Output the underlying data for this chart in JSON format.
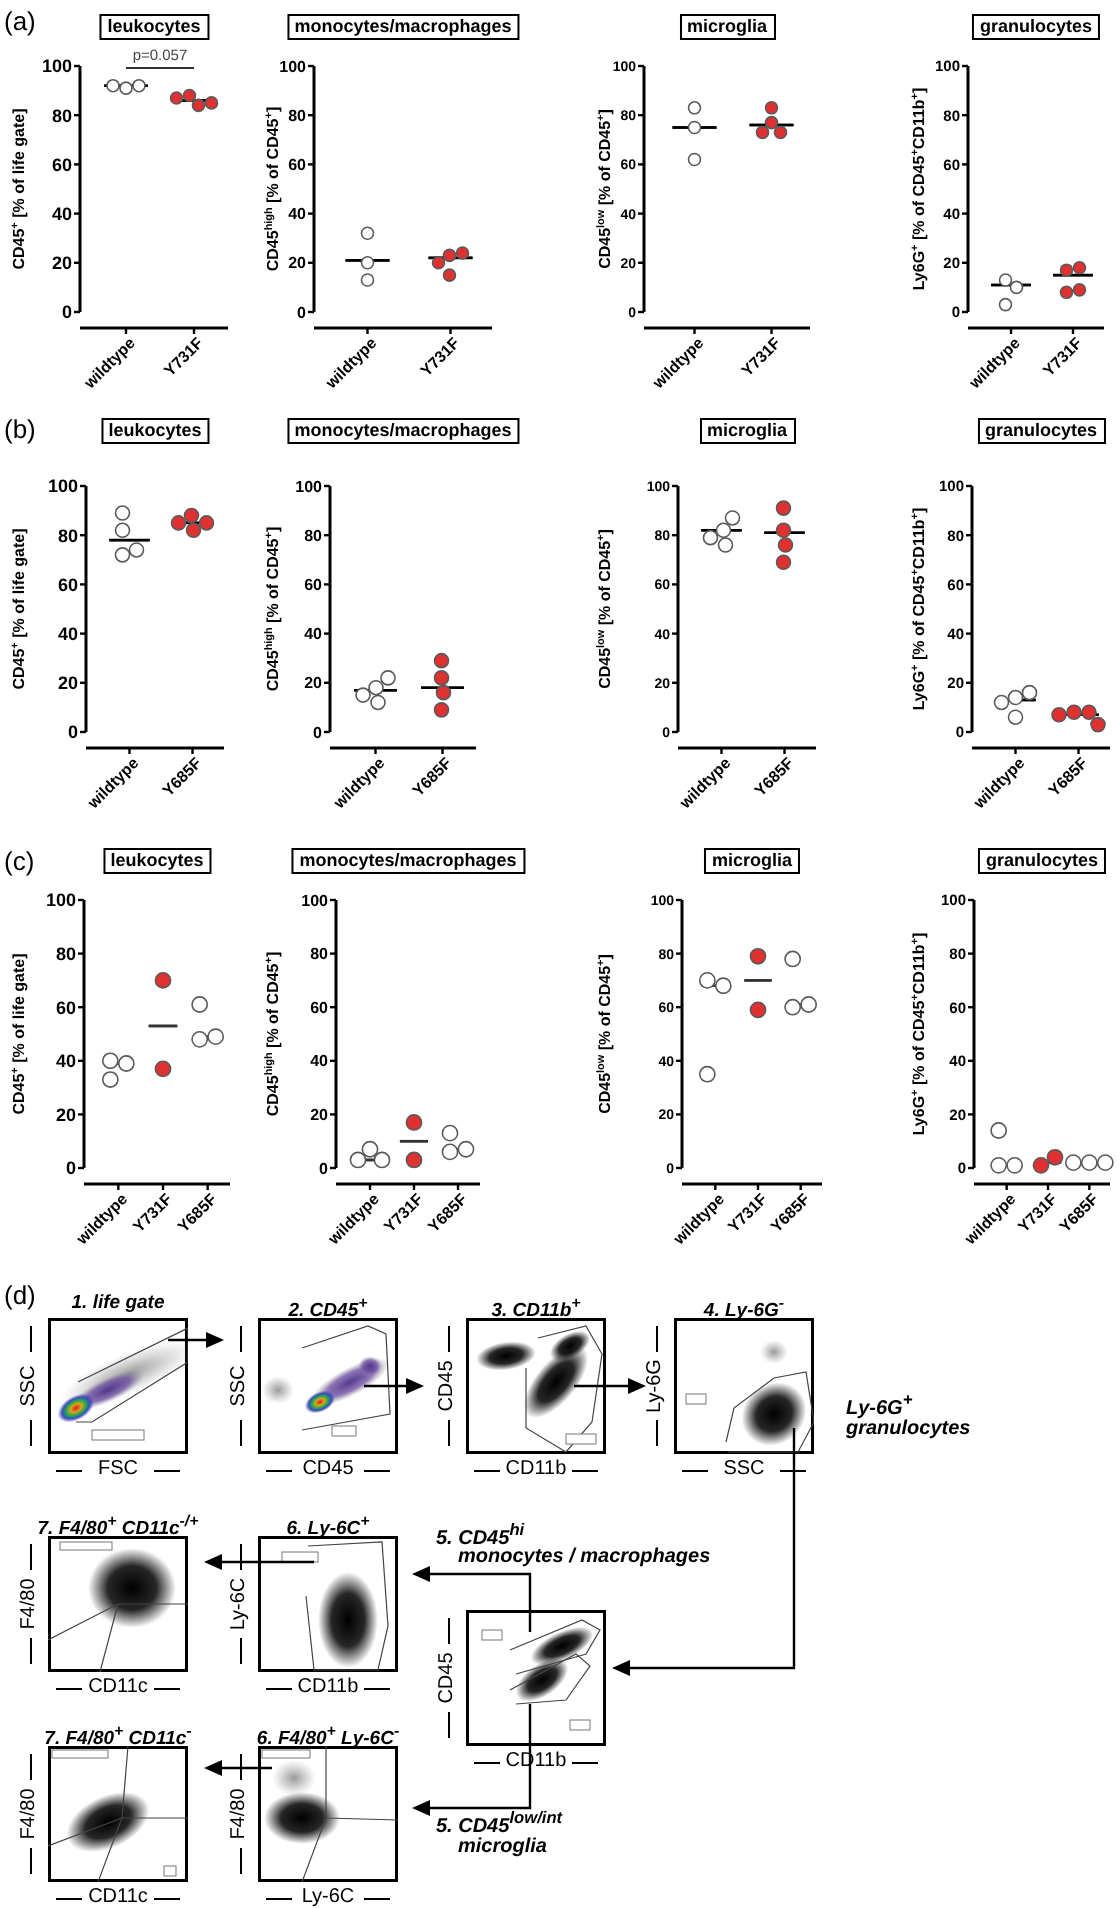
{
  "chart_data": [
    {
      "type": "scatter",
      "title": "leukocytes",
      "ylabel": "CD45$^{+}$ [% of life gate]",
      "categories": [
        "wildtype",
        "Y731F"
      ],
      "ylim": [
        0,
        100
      ],
      "yticks": [
        0,
        20,
        40,
        60,
        80,
        100
      ],
      "marker": "circle",
      "annotations": [
        "(a)",
        "p=0.057"
      ],
      "series": [
        {
          "type": "scatter",
          "color": "#ffffff",
          "x": [
            "wildtype",
            "wildtype",
            "wildtype"
          ],
          "values": [
            91,
            92,
            92
          ]
        },
        {
          "type": "scatter",
          "color": "#e03131",
          "x": [
            "Y731F",
            "Y731F",
            "Y731F",
            "Y731F"
          ],
          "values": [
            88,
            84,
            87,
            85
          ]
        },
        {
          "type": "box",
          "color": "#000000",
          "boxes": [
            {
              "low": 92,
              "q1": 92,
              "median": 92,
              "q3": 92,
              "high": 92
            },
            {
              "low": 86,
              "q1": 86,
              "median": 86,
              "q3": 86,
              "high": 86
            }
          ]
        }
      ]
    },
    {
      "type": "scatter",
      "title": "monocytes/macrophages",
      "ylabel": "CD45$^{high}$ [% of CD45$^{+}$]",
      "categories": [
        "wildtype",
        "Y731F"
      ],
      "ylim": [
        0,
        100
      ],
      "yticks": [
        0,
        20,
        40,
        60,
        80,
        100
      ],
      "marker": "circle",
      "series": [
        {
          "type": "scatter",
          "color": "#ffffff",
          "x": [
            "wildtype",
            "wildtype",
            "wildtype"
          ],
          "values": [
            32,
            20,
            13
          ]
        },
        {
          "type": "scatter",
          "color": "#e03131",
          "x": [
            "Y731F",
            "Y731F",
            "Y731F",
            "Y731F"
          ],
          "values": [
            23,
            24,
            20,
            15
          ]
        },
        {
          "type": "box",
          "color": "#000000",
          "boxes": [
            {
              "low": 21,
              "q1": 21,
              "median": 21,
              "q3": 21,
              "high": 21
            },
            {
              "low": 22,
              "q1": 22,
              "median": 22,
              "q3": 22,
              "high": 22
            }
          ]
        }
      ]
    },
    {
      "type": "scatter",
      "title": "microglia",
      "ylabel": "CD45$^{low}$ [% of CD45$^{+}$]",
      "categories": [
        "wildtype",
        "Y731F"
      ],
      "ylim": [
        0,
        100
      ],
      "yticks": [
        0,
        20,
        40,
        60,
        80,
        100
      ],
      "marker": "circle",
      "series": [
        {
          "type": "scatter",
          "color": "#ffffff",
          "x": [
            "wildtype",
            "wildtype",
            "wildtype"
          ],
          "values": [
            83,
            75,
            62
          ]
        },
        {
          "type": "scatter",
          "color": "#e03131",
          "x": [
            "Y731F",
            "Y731F",
            "Y731F",
            "Y731F"
          ],
          "values": [
            77,
            83,
            73,
            73
          ]
        },
        {
          "type": "box",
          "color": "#000000",
          "boxes": [
            {
              "low": 75,
              "q1": 75,
              "median": 75,
              "q3": 75,
              "high": 75
            },
            {
              "low": 76,
              "q1": 76,
              "median": 76,
              "q3": 76,
              "high": 76
            }
          ]
        }
      ]
    },
    {
      "type": "scatter",
      "title": "granulocytes",
      "ylabel": "Ly6G$^{+}$ [% of CD45$^{+}$CD11b$^{+}$]",
      "categories": [
        "wildtype",
        "Y731F"
      ],
      "ylim": [
        0,
        100
      ],
      "yticks": [
        0,
        20,
        40,
        60,
        80,
        100
      ],
      "marker": "circle",
      "series": [
        {
          "type": "scatter",
          "color": "#ffffff",
          "x": [
            "wildtype",
            "wildtype",
            "wildtype"
          ],
          "values": [
            13,
            10,
            3
          ]
        },
        {
          "type": "scatter",
          "color": "#e03131",
          "x": [
            "Y731F",
            "Y731F",
            "Y731F",
            "Y731F"
          ],
          "values": [
            17,
            18,
            8,
            9
          ]
        },
        {
          "type": "box",
          "color": "#000000",
          "boxes": [
            {
              "low": 11,
              "q1": 11,
              "median": 11,
              "q3": 11,
              "high": 11
            },
            {
              "low": 15,
              "q1": 15,
              "median": 15,
              "q3": 15,
              "high": 15
            }
          ]
        }
      ]
    },
    {
      "type": "scatter",
      "title": "leukocytes",
      "ylabel": "CD45$^{+}$ [% of life gate]",
      "categories": [
        "wildtype",
        "Y685F"
      ],
      "ylim": [
        0,
        100
      ],
      "yticks": [
        0,
        20,
        40,
        60,
        80,
        100
      ],
      "marker": "circle",
      "annotations": [
        "(b)"
      ],
      "series": [
        {
          "type": "scatter",
          "color": "#ffffff",
          "x": [
            "wildtype",
            "wildtype",
            "wildtype",
            "wildtype"
          ],
          "values": [
            89,
            82,
            72,
            74
          ]
        },
        {
          "type": "scatter",
          "color": "#e03131",
          "x": [
            "Y685F",
            "Y685F",
            "Y685F",
            "Y685F"
          ],
          "values": [
            88,
            82,
            85,
            85
          ]
        },
        {
          "type": "box",
          "color": "#000000",
          "boxes": [
            {
              "low": 78,
              "q1": 78,
              "median": 78,
              "q3": 78,
              "high": 78
            },
            {
              "low": 85,
              "q1": 85,
              "median": 85,
              "q3": 85,
              "high": 85
            }
          ]
        }
      ]
    },
    {
      "type": "scatter",
      "title": "monocytes/macrophages",
      "ylabel": "CD45$^{high}$ [% of CD45$^{+}$]",
      "categories": [
        "wildtype",
        "Y685F"
      ],
      "ylim": [
        0,
        100
      ],
      "yticks": [
        0,
        20,
        40,
        60,
        80,
        100
      ],
      "marker": "circle",
      "series": [
        {
          "type": "scatter",
          "color": "#ffffff",
          "x": [
            "wildtype",
            "wildtype",
            "wildtype",
            "wildtype"
          ],
          "values": [
            18,
            12,
            22,
            15
          ]
        },
        {
          "type": "scatter",
          "color": "#e03131",
          "x": [
            "Y685F",
            "Y685F",
            "Y685F",
            "Y685F"
          ],
          "values": [
            29,
            22,
            16,
            9
          ]
        },
        {
          "type": "box",
          "color": "#000000",
          "boxes": [
            {
              "low": 17,
              "q1": 17,
              "median": 17,
              "q3": 17,
              "high": 17
            },
            {
              "low": 18,
              "q1": 18,
              "median": 18,
              "q3": 18,
              "high": 18
            }
          ]
        }
      ]
    },
    {
      "type": "scatter",
      "title": "microglia",
      "ylabel": "CD45$^{low}$ [% of CD45$^{+}$]",
      "categories": [
        "wildtype",
        "Y685F"
      ],
      "ylim": [
        0,
        100
      ],
      "yticks": [
        0,
        20,
        40,
        60,
        80,
        100
      ],
      "marker": "circle",
      "series": [
        {
          "type": "scatter",
          "color": "#ffffff",
          "x": [
            "wildtype",
            "wildtype",
            "wildtype",
            "wildtype"
          ],
          "values": [
            82,
            87,
            76,
            79
          ]
        },
        {
          "type": "scatter",
          "color": "#e03131",
          "x": [
            "Y685F",
            "Y685F",
            "Y685F",
            "Y685F"
          ],
          "values": [
            91,
            82,
            76,
            69
          ]
        },
        {
          "type": "box",
          "color": "#000000",
          "boxes": [
            {
              "low": 82,
              "q1": 82,
              "median": 82,
              "q3": 82,
              "high": 82
            },
            {
              "low": 81,
              "q1": 81,
              "median": 81,
              "q3": 81,
              "high": 81
            }
          ]
        }
      ]
    },
    {
      "type": "scatter",
      "title": "granulocytes",
      "ylabel": "Ly6G$^{+}$ [% of CD45$^{+}$CD11b$^{+}$]",
      "categories": [
        "wildtype",
        "Y685F"
      ],
      "ylim": [
        0,
        100
      ],
      "yticks": [
        0,
        20,
        40,
        60,
        80,
        100
      ],
      "marker": "circle",
      "series": [
        {
          "type": "scatter",
          "color": "#ffffff",
          "x": [
            "wildtype",
            "wildtype",
            "wildtype",
            "wildtype"
          ],
          "values": [
            14,
            16,
            6,
            12
          ]
        },
        {
          "type": "scatter",
          "color": "#e03131",
          "x": [
            "Y685F",
            "Y685F",
            "Y685F",
            "Y685F"
          ],
          "values": [
            8,
            8,
            7,
            3
          ]
        },
        {
          "type": "box",
          "color": "#000000",
          "boxes": [
            {
              "low": 13,
              "q1": 13,
              "median": 13,
              "q3": 13,
              "high": 13
            },
            {
              "low": 7,
              "q1": 7,
              "median": 7,
              "q3": 7,
              "high": 7
            }
          ]
        }
      ]
    },
    {
      "type": "scatter",
      "title": "leukocytes",
      "ylabel": "CD45$^{+}$ [% of life gate]",
      "categories": [
        "wildtype",
        "Y731F",
        "Y685F"
      ],
      "ylim": [
        0,
        100
      ],
      "yticks": [
        0,
        20,
        40,
        60,
        80,
        100
      ],
      "marker": "circle",
      "annotations": [
        "(c)"
      ],
      "series": [
        {
          "type": "scatter",
          "color": "#ffffff",
          "x": [
            "wildtype",
            "wildtype",
            "wildtype"
          ],
          "values": [
            40,
            39,
            33
          ]
        },
        {
          "type": "scatter",
          "color": "#e03131",
          "x": [
            "Y731F",
            "Y731F"
          ],
          "values": [
            70,
            37
          ]
        },
        {
          "type": "scatter",
          "color": "#ffffff",
          "x": [
            "Y685F",
            "Y685F",
            "Y685F"
          ],
          "values": [
            61,
            48,
            49
          ]
        },
        {
          "type": "box",
          "color": "#333333",
          "boxes": [
            {
              "low": 39,
              "q1": 39,
              "median": 39,
              "q3": 39,
              "high": 39
            },
            {
              "low": 53,
              "q1": 53,
              "median": 53,
              "q3": 53,
              "high": 53
            },
            {
              "low": 49,
              "q1": 49,
              "median": 49,
              "q3": 49,
              "high": 49
            }
          ]
        }
      ]
    },
    {
      "type": "scatter",
      "title": "monocytes/macrophages",
      "ylabel": "CD45$^{high}$ [% of CD45$^{+}$]",
      "categories": [
        "wildtype",
        "Y731F",
        "Y685F"
      ],
      "ylim": [
        0,
        100
      ],
      "yticks": [
        0,
        20,
        40,
        60,
        80,
        100
      ],
      "marker": "circle",
      "series": [
        {
          "type": "scatter",
          "color": "#ffffff",
          "x": [
            "wildtype",
            "wildtype",
            "wildtype"
          ],
          "values": [
            7,
            3,
            3
          ]
        },
        {
          "type": "scatter",
          "color": "#e03131",
          "x": [
            "Y731F",
            "Y731F"
          ],
          "values": [
            17,
            3
          ]
        },
        {
          "type": "scatter",
          "color": "#ffffff",
          "x": [
            "Y685F",
            "Y685F",
            "Y685F"
          ],
          "values": [
            13,
            6,
            7
          ]
        },
        {
          "type": "box",
          "color": "#333333",
          "boxes": [
            {
              "low": 3,
              "q1": 3,
              "median": 3,
              "q3": 3,
              "high": 3
            },
            {
              "low": 10,
              "q1": 10,
              "median": 10,
              "q3": 10,
              "high": 10
            },
            {
              "low": 7,
              "q1": 7,
              "median": 7,
              "q3": 7,
              "high": 7
            }
          ]
        }
      ]
    },
    {
      "type": "scatter",
      "title": "microglia",
      "ylabel": "CD45$^{low}$ [% of CD45$^{+}$]",
      "categories": [
        "wildtype",
        "Y731F",
        "Y685F"
      ],
      "ylim": [
        0,
        100
      ],
      "yticks": [
        0,
        20,
        40,
        60,
        80,
        100
      ],
      "marker": "circle",
      "series": [
        {
          "type": "scatter",
          "color": "#ffffff",
          "x": [
            "wildtype",
            "wildtype",
            "wildtype"
          ],
          "values": [
            70,
            68,
            35
          ]
        },
        {
          "type": "scatter",
          "color": "#e03131",
          "x": [
            "Y731F",
            "Y731F"
          ],
          "values": [
            79,
            59
          ]
        },
        {
          "type": "scatter",
          "color": "#ffffff",
          "x": [
            "Y685F",
            "Y685F",
            "Y685F"
          ],
          "values": [
            78,
            60,
            61
          ]
        },
        {
          "type": "box",
          "color": "#333333",
          "boxes": [
            {
              "low": 68,
              "q1": 68,
              "median": 68,
              "q3": 68,
              "high": 68
            },
            {
              "low": 70,
              "q1": 70,
              "median": 70,
              "q3": 70,
              "high": 70
            },
            {
              "low": 61,
              "q1": 61,
              "median": 61,
              "q3": 61,
              "high": 61
            }
          ]
        }
      ]
    },
    {
      "type": "scatter",
      "title": "granulocytes",
      "ylabel": "Ly6G$^{+}$ [% of CD45$^{+}$CD11b$^{+}$]",
      "categories": [
        "wildtype",
        "Y731F",
        "Y685F"
      ],
      "ylim": [
        0,
        100
      ],
      "yticks": [
        0,
        20,
        40,
        60,
        80,
        100
      ],
      "marker": "circle",
      "series": [
        {
          "type": "scatter",
          "color": "#ffffff",
          "x": [
            "wildtype",
            "wildtype",
            "wildtype"
          ],
          "values": [
            14,
            1,
            1
          ]
        },
        {
          "type": "scatter",
          "color": "#e03131",
          "x": [
            "Y731F",
            "Y731F"
          ],
          "values": [
            1,
            4
          ]
        },
        {
          "type": "scatter",
          "color": "#ffffff",
          "x": [
            "Y685F",
            "Y685F",
            "Y685F"
          ],
          "values": [
            2,
            2,
            2
          ]
        },
        {
          "type": "box",
          "color": "#333333",
          "boxes": [
            {
              "low": 1,
              "q1": 1,
              "median": 1,
              "q3": 1,
              "high": 1
            },
            {
              "low": 2,
              "q1": 2,
              "median": 2,
              "q3": 2,
              "high": 2
            },
            {
              "low": 2,
              "q1": 2,
              "median": 2,
              "q3": 2,
              "high": 2
            }
          ]
        }
      ]
    },
    {
      "type": "other",
      "title": "1. life gate",
      "xlabel": "FSC",
      "ylabel": "SSC",
      "annotations": [
        "(d)"
      ]
    },
    {
      "type": "other",
      "title": "2. CD45$^{+}$",
      "xlabel": "CD45",
      "ylabel": "SSC"
    },
    {
      "type": "other",
      "title": "3. CD11b$^{+}$",
      "xlabel": "CD11b",
      "ylabel": "CD45"
    },
    {
      "type": "other",
      "title": "4. Ly-6G$^{-}$",
      "xlabel": "SSC",
      "ylabel": "Ly-6G",
      "annotations": [
        "Ly-6G$^{+}$",
        "granulocytes"
      ]
    },
    {
      "type": "other",
      "title": "7. F4/80$^{+}$ CD11c$^{-/+}$",
      "xlabel": "CD11c",
      "ylabel": "F4/80"
    },
    {
      "type": "other",
      "title": "6. Ly-6C$^{+}$",
      "xlabel": "CD11b",
      "ylabel": "Ly-6C"
    },
    {
      "type": "other",
      "xlabel": "CD11b",
      "ylabel": "CD45",
      "annotations": [
        "5. CD45$^{hi}$",
        "monocytes / macrophages",
        "5. CD45$^{low/int}$",
        "microglia"
      ]
    },
    {
      "type": "other",
      "title": "7. F4/80$^{+}$ CD11c$^{-}$",
      "xlabel": "CD11c",
      "ylabel": "F4/80"
    },
    {
      "type": "other",
      "title": "6. F4/80$^{+}$ Ly-6C$^{-}$",
      "xlabel": "Ly-6C",
      "ylabel": "F4/80"
    }
  ]
}
